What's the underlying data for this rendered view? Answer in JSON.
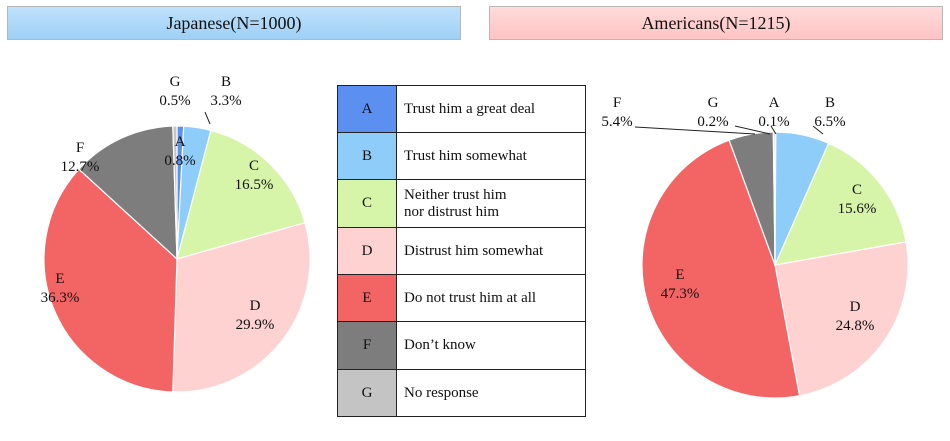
{
  "legend": [
    {
      "code": "A",
      "label": "Trust him a great deal",
      "color": "#5b8ff0"
    },
    {
      "code": "B",
      "label": "Trust him somewhat",
      "color": "#8ecdf9"
    },
    {
      "code": "C",
      "label": "Neither trust him\nnor distrust him",
      "color": "#d6f5a8"
    },
    {
      "code": "D",
      "label": "Distrust him somewhat",
      "color": "#ffd2d2"
    },
    {
      "code": "E",
      "label": "Do not trust him at all",
      "color": "#f36464"
    },
    {
      "code": "F",
      "label": "Don’t know",
      "color": "#7d7d7d"
    },
    {
      "code": "G",
      "label": "No response",
      "color": "#c4c4c4"
    }
  ],
  "chart_data": [
    {
      "type": "pie",
      "title": "Japanese(N=1000)",
      "categories": [
        "A",
        "B",
        "C",
        "D",
        "E",
        "F",
        "G"
      ],
      "values": [
        0.8,
        3.3,
        16.5,
        29.9,
        36.3,
        12.7,
        0.5
      ],
      "labels": [
        "0.8%",
        "3.3%",
        "16.5%",
        "29.9%",
        "36.3%",
        "12.7%",
        "0.5%"
      ]
    },
    {
      "type": "pie",
      "title": "Americans(N=1215)",
      "categories": [
        "A",
        "B",
        "C",
        "D",
        "E",
        "F",
        "G"
      ],
      "values": [
        0.1,
        6.5,
        15.6,
        24.8,
        47.3,
        5.4,
        0.2
      ],
      "labels": [
        "0.1%",
        "6.5%",
        "15.6%",
        "24.8%",
        "47.3%",
        "5.4%",
        "0.2%"
      ]
    }
  ]
}
